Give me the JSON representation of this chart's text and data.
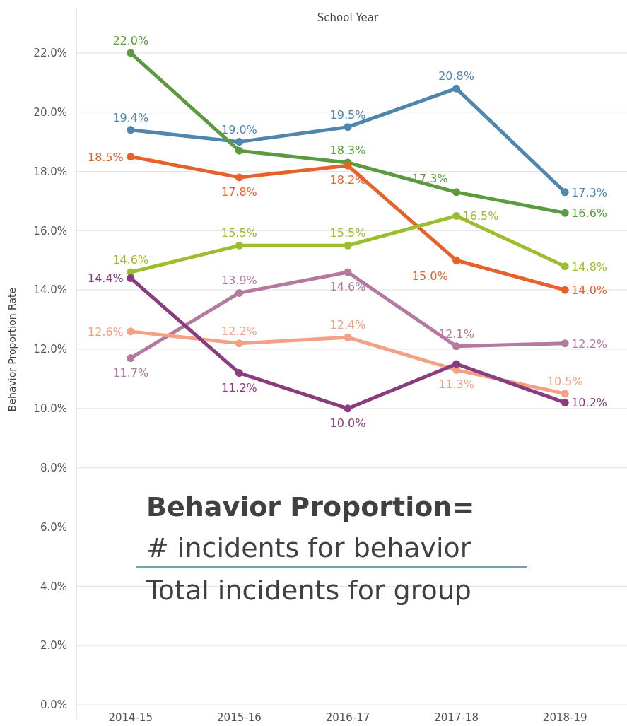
{
  "chart_data": {
    "type": "line",
    "xlabel": "School Year",
    "ylabel": "Behavior Proportion Rate",
    "categories": [
      "2014-15",
      "2015-16",
      "2016-17",
      "2017-18",
      "2018-19"
    ],
    "ylim": [
      0,
      23.5
    ],
    "yticks": [
      {
        "value": 0,
        "label": "0.0%"
      },
      {
        "value": 2,
        "label": "2.0%"
      },
      {
        "value": 4,
        "label": "4.0%"
      },
      {
        "value": 6,
        "label": "6.0%"
      },
      {
        "value": 8,
        "label": "8.0%"
      },
      {
        "value": 10,
        "label": "10.0%"
      },
      {
        "value": 12,
        "label": "12.0%"
      },
      {
        "value": 14,
        "label": "14.0%"
      },
      {
        "value": 16,
        "label": "16.0%"
      },
      {
        "value": 18,
        "label": "18.0%"
      },
      {
        "value": 20,
        "label": "20.0%"
      },
      {
        "value": 22,
        "label": "22.0%"
      }
    ],
    "grid": "y",
    "marker": "circle",
    "line_style": "solid",
    "series": [
      {
        "color": "#4f86ad",
        "values": [
          19.4,
          19.0,
          19.5,
          20.8,
          17.3
        ],
        "value_labels": [
          "19.4%",
          "19.0%",
          "19.5%",
          "20.8%",
          "17.3%"
        ]
      },
      {
        "color": "#5b9a3f",
        "values": [
          22.0,
          18.7,
          18.3,
          17.3,
          16.6
        ],
        "value_labels": [
          "22.0%",
          null,
          "18.3%",
          "17.3%",
          "16.6%"
        ]
      },
      {
        "color": "#e8602c",
        "values": [
          18.5,
          17.8,
          18.2,
          15.0,
          14.0
        ],
        "value_labels": [
          "18.5%",
          "17.8%",
          "18.2%",
          "15.0%",
          "14.0%"
        ]
      },
      {
        "color": "#9cbd2e",
        "values": [
          14.6,
          15.5,
          15.5,
          16.5,
          14.8
        ],
        "value_labels": [
          "14.6%",
          "15.5%",
          "15.5%",
          "16.5%",
          "14.8%"
        ]
      },
      {
        "color": "#b5799f",
        "values": [
          11.7,
          13.9,
          14.6,
          12.1,
          12.2
        ],
        "value_labels": [
          "11.7%",
          "13.9%",
          "14.6%",
          "12.1%",
          "12.2%"
        ]
      },
      {
        "color": "#f2a185",
        "values": [
          12.6,
          12.2,
          12.4,
          11.3,
          10.5
        ],
        "value_labels": [
          "12.6%",
          "12.2%",
          "12.4%",
          "11.3%",
          "10.5%"
        ]
      },
      {
        "color": "#8a3d7e",
        "values": [
          14.4,
          11.2,
          10.0,
          11.5,
          10.2
        ],
        "value_labels": [
          "14.4%",
          "11.2%",
          "10.0%",
          null,
          "10.2%"
        ]
      }
    ],
    "annotations": [
      "Behavior Proportion=",
      "# incidents for behavior",
      "Total incidents for group"
    ]
  }
}
